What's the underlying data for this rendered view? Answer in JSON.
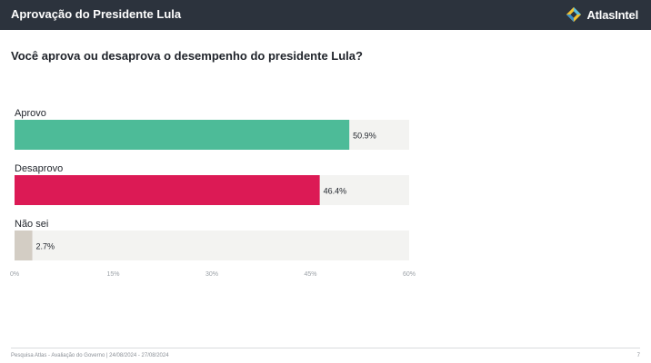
{
  "header": {
    "title": "Aprovação do Presidente Lula",
    "brand": "AtlasIntel",
    "brand_icon": "atlasintel-logo-icon"
  },
  "question": "Você aprova ou desaprova o desempenho do presidente Lula?",
  "footer": {
    "source": "Pesquisa Atlas - Avaliação do Governo | 24/08/2024 - 27/08/2024",
    "page": "7"
  },
  "chart_data": {
    "type": "bar",
    "orientation": "horizontal",
    "categories": [
      "Aprovo",
      "Desaprovo",
      "Não sei"
    ],
    "values": [
      50.9,
      46.4,
      2.7
    ],
    "value_labels": [
      "50.9%",
      "46.4%",
      "2.7%"
    ],
    "colors": [
      "#4dbb98",
      "#dc1a55",
      "#d3cdc4"
    ],
    "track_color": "#f3f3f1",
    "xlim": [
      0,
      60
    ],
    "xticks": [
      0,
      15,
      30,
      45,
      60
    ],
    "xtick_labels": [
      "0%",
      "15%",
      "30%",
      "45%",
      "60%"
    ],
    "title": "",
    "xlabel": "",
    "ylabel": "",
    "grid": false,
    "legend": "none"
  }
}
